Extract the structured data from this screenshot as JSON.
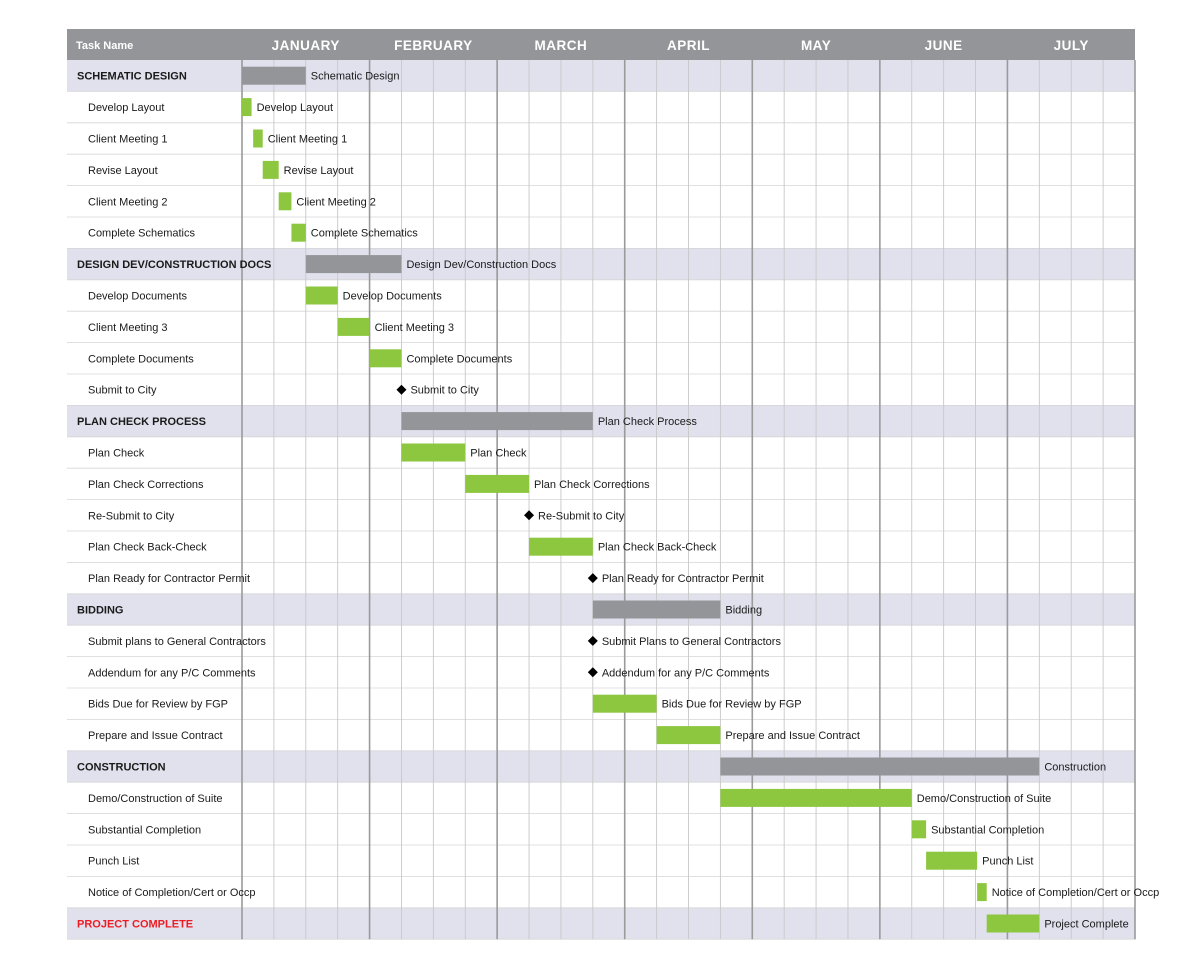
{
  "chart_data": {
    "type": "gantt",
    "task_column_header": "Task Name",
    "months": [
      "JANUARY",
      "FEBRUARY",
      "MARCH",
      "APRIL",
      "MAY",
      "JUNE",
      "JULY"
    ],
    "weeks_per_month": 4,
    "colors": {
      "header_bg": "#939598",
      "section_bg": "#e0e1ed",
      "summary_bar": "#939598",
      "task_bar": "#8dc63f",
      "milestone": "#000000",
      "highlight_text": "#ed1c24",
      "grid_minor": "#c8c8c8",
      "grid_major": "#9a9a9a"
    },
    "rows": [
      {
        "name": "SCHEMATIC DESIGN",
        "kind": "section",
        "start_week": 0,
        "end_week": 2,
        "label": "Schematic Design"
      },
      {
        "name": "Develop Layout",
        "kind": "task",
        "start_week": 0,
        "end_week": 0.3,
        "label": "Develop Layout"
      },
      {
        "name": "Client Meeting 1",
        "kind": "task",
        "start_week": 0.35,
        "end_week": 0.65,
        "label": "Client Meeting 1"
      },
      {
        "name": "Revise Layout",
        "kind": "task",
        "start_week": 0.65,
        "end_week": 1.15,
        "label": "Revise Layout"
      },
      {
        "name": "Client Meeting 2",
        "kind": "task",
        "start_week": 1.15,
        "end_week": 1.55,
        "label": "Client Meeting 2"
      },
      {
        "name": "Complete Schematics",
        "kind": "task",
        "start_week": 1.55,
        "end_week": 2,
        "label": "Complete Schematics"
      },
      {
        "name": "DESIGN DEV/CONSTRUCTION DOCS",
        "kind": "section",
        "start_week": 2,
        "end_week": 5,
        "label": "Design Dev/Construction Docs"
      },
      {
        "name": "Develop Documents",
        "kind": "task",
        "start_week": 2,
        "end_week": 3,
        "label": "Develop Documents"
      },
      {
        "name": "Client Meeting 3",
        "kind": "task",
        "start_week": 3,
        "end_week": 4,
        "label": "Client Meeting 3"
      },
      {
        "name": "Complete Documents",
        "kind": "task",
        "start_week": 4,
        "end_week": 5,
        "label": "Complete Documents"
      },
      {
        "name": "Submit to City",
        "kind": "milestone",
        "start_week": 5,
        "end_week": 5,
        "label": "Submit to City"
      },
      {
        "name": "PLAN CHECK PROCESS",
        "kind": "section",
        "start_week": 5,
        "end_week": 11,
        "label": "Plan Check Process"
      },
      {
        "name": "Plan Check",
        "kind": "task",
        "start_week": 5,
        "end_week": 7,
        "label": "Plan Check"
      },
      {
        "name": "Plan Check Corrections",
        "kind": "task",
        "start_week": 7,
        "end_week": 9,
        "label": "Plan Check Corrections"
      },
      {
        "name": "Re-Submit to City",
        "kind": "milestone",
        "start_week": 9,
        "end_week": 9,
        "label": "Re-Submit to City"
      },
      {
        "name": "Plan Check Back-Check",
        "kind": "task",
        "start_week": 9,
        "end_week": 11,
        "label": "Plan Check Back-Check"
      },
      {
        "name": "Plan Ready for Contractor Permit",
        "kind": "milestone",
        "start_week": 11,
        "end_week": 11,
        "label": "Plan Ready for Contractor Permit"
      },
      {
        "name": "BIDDING",
        "kind": "section",
        "start_week": 11,
        "end_week": 15,
        "label": "Bidding"
      },
      {
        "name": "Submit plans to General Contractors",
        "kind": "milestone",
        "start_week": 11,
        "end_week": 11,
        "label": "Submit Plans to General Contractors"
      },
      {
        "name": "Addendum for any P/C Comments",
        "kind": "milestone",
        "start_week": 11,
        "end_week": 11,
        "label": "Addendum for any P/C Comments"
      },
      {
        "name": "Bids Due for Review by FGP",
        "kind": "task",
        "start_week": 11,
        "end_week": 13,
        "label": "Bids Due for Review by FGP"
      },
      {
        "name": "Prepare and Issue Contract",
        "kind": "task",
        "start_week": 13,
        "end_week": 15,
        "label": "Prepare and Issue Contract"
      },
      {
        "name": "CONSTRUCTION",
        "kind": "section",
        "start_week": 15,
        "end_week": 25,
        "label": "Construction"
      },
      {
        "name": "Demo/Construction of Suite",
        "kind": "task",
        "start_week": 15,
        "end_week": 21,
        "label": "Demo/Construction of Suite"
      },
      {
        "name": "Substantial Completion",
        "kind": "task",
        "start_week": 21,
        "end_week": 21.45,
        "label": "Substantial Completion"
      },
      {
        "name": "Punch List",
        "kind": "task",
        "start_week": 21.45,
        "end_week": 23.05,
        "label": "Punch List"
      },
      {
        "name": "Notice of Completion/Cert or Occp",
        "kind": "task",
        "start_week": 23.05,
        "end_week": 23.35,
        "label": "Notice of Completion/Cert or Occp"
      },
      {
        "name": "PROJECT COMPLETE",
        "kind": "final",
        "start_week": 23.35,
        "end_week": 25,
        "label": "Project Complete"
      }
    ]
  }
}
